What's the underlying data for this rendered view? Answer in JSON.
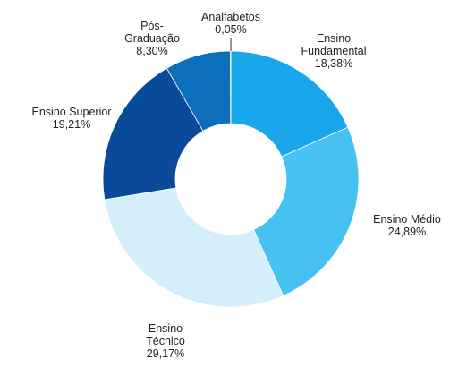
{
  "chart_data": {
    "type": "donut",
    "categories": [
      "Ensino Fundamental",
      "Ensino Médio",
      "Ensino Técnico",
      "Ensino Superior",
      "Pós-Graduação",
      "Analfabetos"
    ],
    "values": [
      18.38,
      24.89,
      29.17,
      19.21,
      8.3,
      0.05
    ],
    "value_labels": [
      "18,38%",
      "24,89%",
      "29,17%",
      "19,21%",
      "8,30%",
      "0,05%"
    ],
    "colors": [
      "#1aa6ea",
      "#46c1f1",
      "#d5eefb",
      "#0a4a9b",
      "#0c6fbe",
      "#0c6fbe"
    ]
  }
}
